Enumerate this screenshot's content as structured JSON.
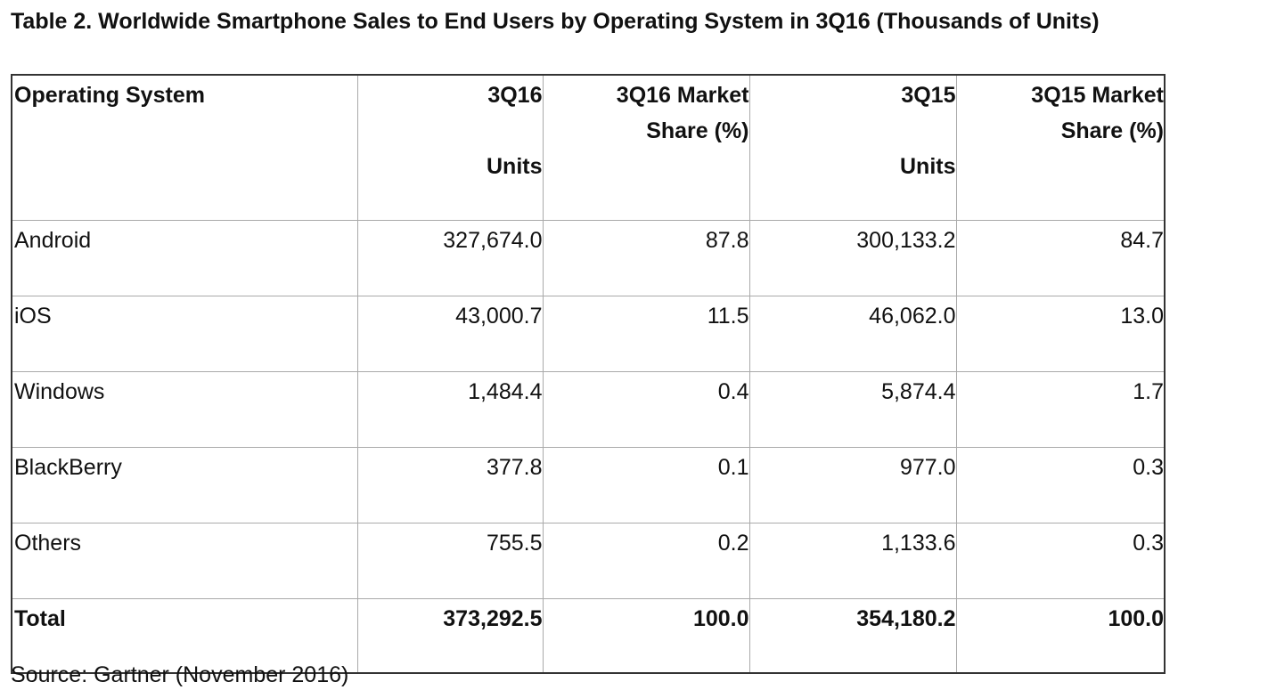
{
  "title": "Table 2. Worldwide Smartphone Sales to End Users by Operating System in 3Q16 (Thousands of Units)",
  "headers": [
    [
      "Operating System"
    ],
    [
      "3Q16",
      "",
      "Units"
    ],
    [
      "3Q16 Market",
      "Share (%)"
    ],
    [
      "3Q15",
      "",
      "Units"
    ],
    [
      "3Q15 Market",
      "Share (%)"
    ]
  ],
  "rows": [
    [
      "Android",
      "327,674.0",
      "87.8",
      "300,133.2",
      "84.7"
    ],
    [
      "iOS",
      "43,000.7",
      "11.5",
      "46,062.0",
      "13.0"
    ],
    [
      "Windows",
      "1,484.4",
      "0.4",
      "5,874.4",
      "1.7"
    ],
    [
      "BlackBerry",
      "377.8",
      "0.1",
      "977.0",
      "0.3"
    ],
    [
      "Others",
      "755.5",
      "0.2",
      "1,133.6",
      "0.3"
    ]
  ],
  "total": [
    "Total",
    "373,292.5",
    "100.0",
    "354,180.2",
    "100.0"
  ],
  "source": "Source: Gartner (November 2016)"
}
